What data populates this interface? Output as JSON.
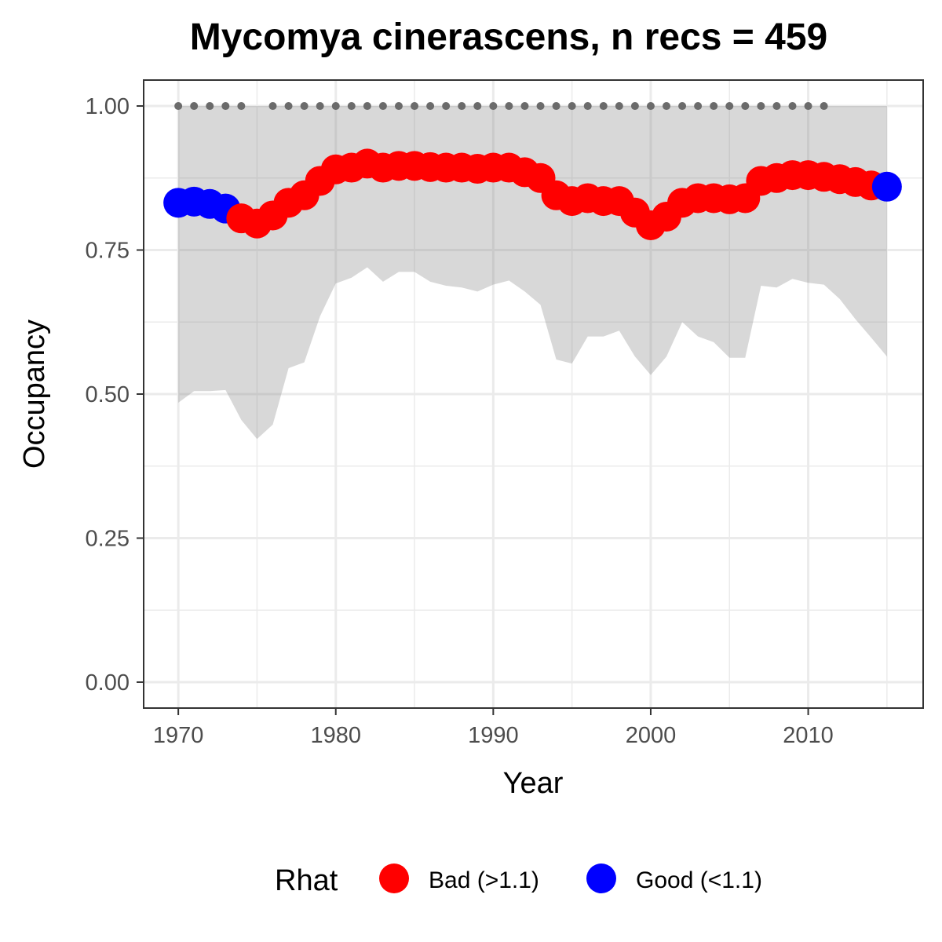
{
  "chart_data": {
    "type": "line",
    "title": "Mycomya cinerascens, n recs = 459",
    "xlabel": "Year",
    "ylabel": "Occupancy",
    "xlim": [
      1967.8,
      2017.3
    ],
    "ylim": [
      -0.045,
      1.045
    ],
    "x_ticks": [
      1970,
      1980,
      1990,
      2000,
      2010
    ],
    "y_ticks": [
      0.0,
      0.25,
      0.5,
      0.75,
      1.0
    ],
    "x_tick_labels": [
      "1970",
      "1980",
      "1990",
      "2000",
      "2010"
    ],
    "y_tick_labels": [
      "0.00",
      "0.25",
      "0.50",
      "0.75",
      "1.00"
    ],
    "grid": true,
    "legend": {
      "title": "Rhat",
      "placement": "bottom",
      "entries": [
        {
          "label": "Bad (>1.1)",
          "color": "#ff0000"
        },
        {
          "label": "Good (<1.1)",
          "color": "#0000ff"
        }
      ]
    },
    "series": [
      {
        "name": "Occupancy",
        "x": [
          1970,
          1971,
          1972,
          1973,
          1974,
          1975,
          1976,
          1977,
          1978,
          1979,
          1980,
          1981,
          1982,
          1983,
          1984,
          1985,
          1986,
          1987,
          1988,
          1989,
          1990,
          1991,
          1992,
          1993,
          1994,
          1995,
          1996,
          1997,
          1998,
          1999,
          2000,
          2001,
          2002,
          2003,
          2004,
          2005,
          2006,
          2007,
          2008,
          2009,
          2010,
          2011,
          2012,
          2013,
          2014,
          2015
        ],
        "y": [
          0.832,
          0.834,
          0.83,
          0.822,
          0.805,
          0.796,
          0.81,
          0.832,
          0.845,
          0.87,
          0.89,
          0.893,
          0.9,
          0.893,
          0.896,
          0.896,
          0.894,
          0.893,
          0.893,
          0.891,
          0.893,
          0.893,
          0.885,
          0.875,
          0.845,
          0.835,
          0.84,
          0.835,
          0.835,
          0.815,
          0.793,
          0.808,
          0.832,
          0.84,
          0.84,
          0.838,
          0.84,
          0.87,
          0.875,
          0.88,
          0.88,
          0.877,
          0.873,
          0.868,
          0.862,
          0.86
        ],
        "rhat": [
          "Good",
          "Good",
          "Good",
          "Good",
          "Bad",
          "Bad",
          "Bad",
          "Bad",
          "Bad",
          "Bad",
          "Bad",
          "Bad",
          "Bad",
          "Bad",
          "Bad",
          "Bad",
          "Bad",
          "Bad",
          "Bad",
          "Bad",
          "Bad",
          "Bad",
          "Bad",
          "Bad",
          "Bad",
          "Bad",
          "Bad",
          "Bad",
          "Bad",
          "Bad",
          "Bad",
          "Bad",
          "Bad",
          "Bad",
          "Bad",
          "Bad",
          "Bad",
          "Bad",
          "Bad",
          "Bad",
          "Bad",
          "Bad",
          "Bad",
          "Bad",
          "Bad",
          "Good"
        ],
        "lower": [
          0.485,
          0.505,
          0.505,
          0.507,
          0.455,
          0.422,
          0.447,
          0.545,
          0.555,
          0.635,
          0.692,
          0.702,
          0.72,
          0.695,
          0.712,
          0.712,
          0.695,
          0.688,
          0.685,
          0.678,
          0.69,
          0.697,
          0.678,
          0.655,
          0.56,
          0.553,
          0.6,
          0.6,
          0.61,
          0.565,
          0.533,
          0.565,
          0.625,
          0.6,
          0.59,
          0.563,
          0.563,
          0.688,
          0.685,
          0.7,
          0.693,
          0.69,
          0.665,
          0.63,
          0.598,
          0.565
        ],
        "upper": [
          1.0,
          1.0,
          1.0,
          1.0,
          1.0,
          1.0,
          1.0,
          1.0,
          1.0,
          1.0,
          1.0,
          1.0,
          1.0,
          1.0,
          1.0,
          1.0,
          1.0,
          1.0,
          1.0,
          1.0,
          1.0,
          1.0,
          1.0,
          1.0,
          1.0,
          1.0,
          1.0,
          1.0,
          1.0,
          1.0,
          1.0,
          1.0,
          1.0,
          1.0,
          1.0,
          1.0,
          1.0,
          1.0,
          1.0,
          1.0,
          1.0,
          1.0,
          1.0,
          1.0,
          1.0,
          1.0
        ]
      }
    ],
    "data_points": {
      "x": [
        1970,
        1971,
        1972,
        1973,
        1974,
        1976,
        1977,
        1978,
        1979,
        1980,
        1981,
        1982,
        1983,
        1984,
        1985,
        1986,
        1987,
        1988,
        1989,
        1990,
        1991,
        1992,
        1993,
        1994,
        1995,
        1996,
        1997,
        1998,
        1999,
        2000,
        2001,
        2002,
        2003,
        2004,
        2005,
        2006,
        2007,
        2008,
        2009,
        2010,
        2011
      ],
      "y": 1.0
    }
  }
}
